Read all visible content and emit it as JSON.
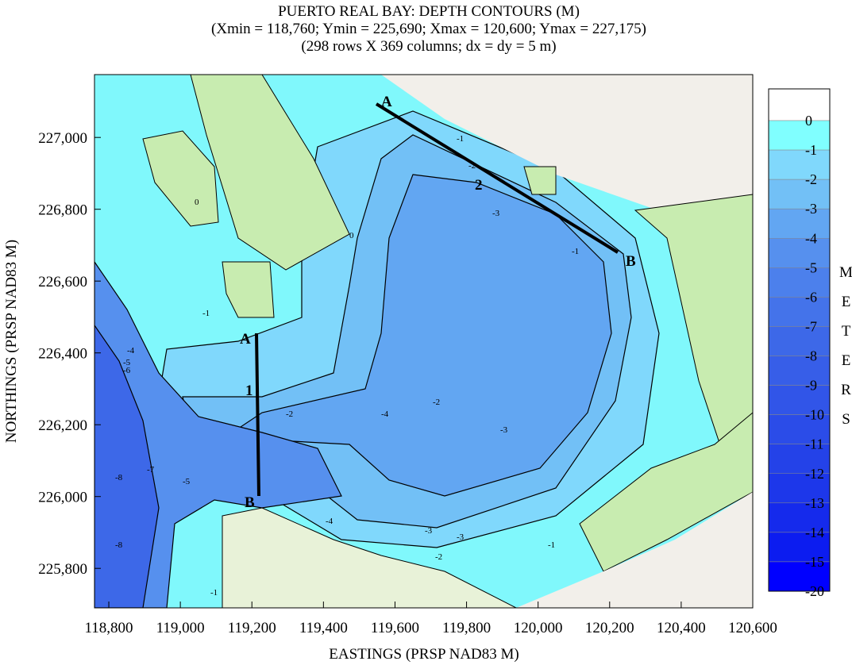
{
  "chart_data": {
    "type": "contour",
    "title": [
      "PUERTO REAL BAY: DEPTH CONTOURS (M)",
      "(Xmin = 118,760; Ymin = 225,690; Xmax = 120,600; Ymax = 227,175)",
      "(298 rows X 369 columns; dx = dy = 5 m)"
    ],
    "xlabel": "EASTINGS (PRSP NAD83 M)",
    "ylabel": "NORTHINGS (PRSP NAD83 M)",
    "xlim": [
      118760,
      120600
    ],
    "ylim": [
      225690,
      227175
    ],
    "xticks": [
      {
        "value": 118800,
        "label": "118,800"
      },
      {
        "value": 119000,
        "label": "119,000"
      },
      {
        "value": 119200,
        "label": "119,200"
      },
      {
        "value": 119400,
        "label": "119,400"
      },
      {
        "value": 119600,
        "label": "119,600"
      },
      {
        "value": 119800,
        "label": "119,800"
      },
      {
        "value": 120000,
        "label": "120,000"
      },
      {
        "value": 120200,
        "label": "120,200"
      },
      {
        "value": 120400,
        "label": "120,400"
      },
      {
        "value": 120600,
        "label": "120,600"
      }
    ],
    "yticks": [
      {
        "value": 225800,
        "label": "225,800"
      },
      {
        "value": 226000,
        "label": "226,000"
      },
      {
        "value": 226200,
        "label": "226,200"
      },
      {
        "value": 226400,
        "label": "226,400"
      },
      {
        "value": 226600,
        "label": "226,600"
      },
      {
        "value": 226800,
        "label": "226,800"
      },
      {
        "value": 227000,
        "label": "227,000"
      }
    ],
    "colorbar": {
      "title": "METERS",
      "levels": [
        0,
        -1,
        -2,
        -3,
        -4,
        -5,
        -6,
        -7,
        -8,
        -9,
        -10,
        -11,
        -12,
        -13,
        -14,
        -15,
        -20
      ],
      "colors": [
        "#ffffff",
        "#80ffff",
        "#80d8fc",
        "#72c0f6",
        "#62a6f2",
        "#5690ee",
        "#4c80ec",
        "#4473ea",
        "#3d68e8",
        "#375ee8",
        "#3155e8",
        "#2b4ce8",
        "#2442e8",
        "#1d37ea",
        "#152aec",
        "#0c1cf0",
        "#0000ff"
      ]
    },
    "annotations": [
      "A",
      "2",
      "B",
      "A",
      "1",
      "B"
    ],
    "contour_labels": [
      "-1",
      "-2",
      "-3",
      "-3",
      "-2",
      "-1",
      "0",
      "-1",
      "-2",
      "-3",
      "-4",
      "-4",
      "-3",
      "-2",
      "-1",
      "-4",
      "-5",
      "-6",
      "-7",
      "-8",
      "-8",
      "-5",
      "0",
      "-1"
    ]
  }
}
